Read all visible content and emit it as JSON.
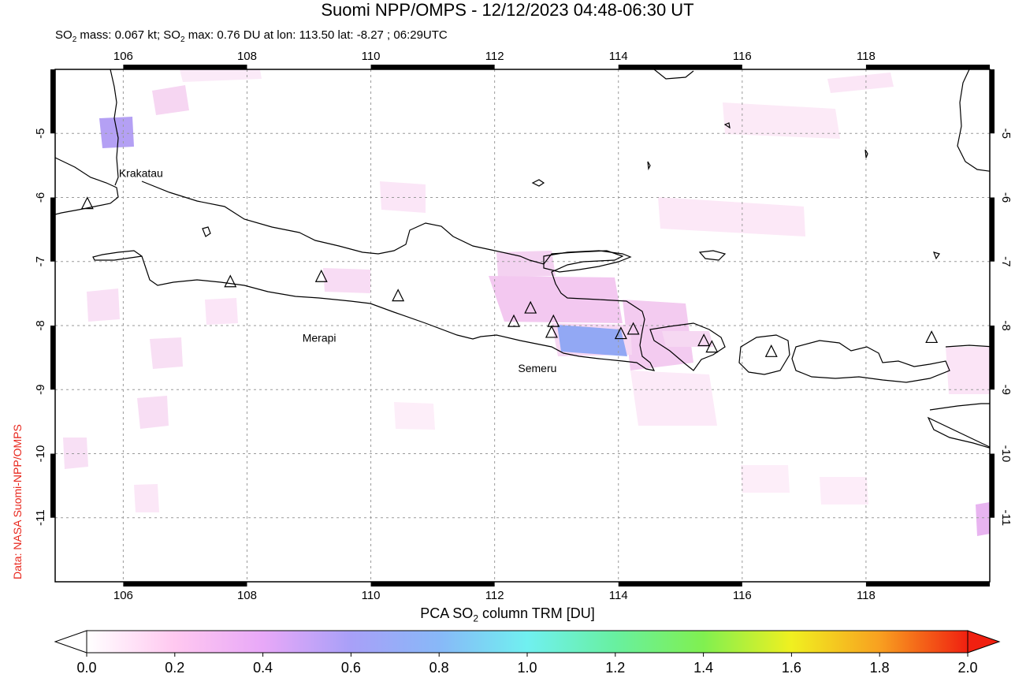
{
  "title": "Suomi NPP/OMPS - 12/12/2023 04:48-06:30 UT",
  "subtitle": {
    "mass_prefix": "SO",
    "mass_sub": "2",
    "mass_text": " mass: 0.067 kt; SO",
    "max_sub": "2",
    "max_text": " max: 0.76 DU at lon: 113.50 lat: -8.27 ; 06:29UTC"
  },
  "credit": "Data: NASA Suomi-NPP/OMPS",
  "map": {
    "lon_range": [
      104.9,
      120.0
    ],
    "lat_range": [
      -12.0,
      -4.0
    ],
    "lon_ticks": [
      "106",
      "108",
      "110",
      "112",
      "114",
      "116",
      "118"
    ],
    "lat_ticks": [
      "-5",
      "-6",
      "-7",
      "-8",
      "-9",
      "-10",
      "-11"
    ],
    "volcanoes": [
      {
        "name": "Krakatau",
        "lon": 105.42,
        "lat": -6.1,
        "labeled": true
      },
      {
        "name": "",
        "lon": 107.73,
        "lat": -7.32,
        "labeled": false
      },
      {
        "name": "",
        "lon": 109.2,
        "lat": -7.24,
        "labeled": false
      },
      {
        "name": "Merapi",
        "lon": 110.44,
        "lat": -7.54,
        "labeled": true
      },
      {
        "name": "",
        "lon": 112.31,
        "lat": -7.94,
        "labeled": false
      },
      {
        "name": "",
        "lon": 112.58,
        "lat": -7.73,
        "labeled": false
      },
      {
        "name": "",
        "lon": 112.95,
        "lat": -7.94,
        "labeled": false
      },
      {
        "name": "Semeru",
        "lon": 112.92,
        "lat": -8.11,
        "labeled": true
      },
      {
        "name": "",
        "lon": 114.04,
        "lat": -8.13,
        "labeled": false
      },
      {
        "name": "",
        "lon": 114.24,
        "lat": -8.06,
        "labeled": false
      },
      {
        "name": "",
        "lon": 115.38,
        "lat": -8.24,
        "labeled": false
      },
      {
        "name": "",
        "lon": 115.51,
        "lat": -8.34,
        "labeled": false
      },
      {
        "name": "",
        "lon": 116.47,
        "lat": -8.41,
        "labeled": false
      },
      {
        "name": "",
        "lon": 119.06,
        "lat": -8.19,
        "labeled": false
      }
    ],
    "so2_max": {
      "value_du": 0.76,
      "lon": 113.5,
      "lat": -8.27
    },
    "colors": {
      "coast": "#000000",
      "grid": "#9a9a9a",
      "frame": "#000000"
    }
  },
  "colorbar": {
    "title_prefix": "PCA SO",
    "title_sub": "2",
    "title_suffix": " column TRM [DU]",
    "ticks": [
      "0.0",
      "0.2",
      "0.4",
      "0.6",
      "0.8",
      "1.0",
      "1.2",
      "1.4",
      "1.6",
      "1.8",
      "2.0"
    ],
    "range": [
      0.0,
      2.0
    ],
    "stops": [
      "#ffffff",
      "#ffc8f0",
      "#e8a8f8",
      "#a8a0f8",
      "#88b8f8",
      "#70f0f0",
      "#68f0a0",
      "#80f050",
      "#f0f020",
      "#f8a020",
      "#f02010"
    ]
  }
}
